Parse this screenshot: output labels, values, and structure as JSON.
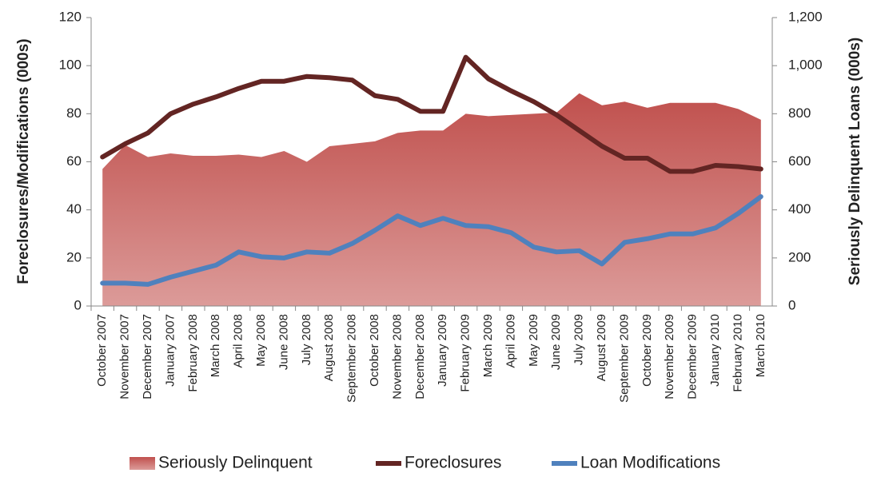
{
  "chart_data": {
    "type": "line",
    "ylabel": "Foreclosures/Modifications (000s)",
    "y2label": "Seriously Delinquent Loans (000s)",
    "categories": [
      "October 2007",
      "November 2007",
      "December 2007",
      "January 2007",
      "February 2008",
      "March 2008",
      "April 2008",
      "May 2008",
      "June 2008",
      "July 2008",
      "August 2008",
      "September 2008",
      "October 2008",
      "November 2008",
      "December 2008",
      "January 2009",
      "February 2009",
      "March 2009",
      "April 2009",
      "May 2009",
      "June 2009",
      "July 2009",
      "August 2009",
      "September 2009",
      "October 2009",
      "November 2009",
      "December 2009",
      "January 2010",
      "February 2010",
      "March 2010"
    ],
    "series": [
      {
        "name": "Seriously Delinquent",
        "type": "area",
        "axis": "y2",
        "color": "#c0504d",
        "values": [
          570,
          670,
          620,
          635,
          625,
          625,
          630,
          620,
          645,
          600,
          665,
          675,
          685,
          720,
          730,
          730,
          800,
          790,
          795,
          800,
          805,
          885,
          835,
          850,
          825,
          845,
          845,
          845,
          820,
          775
        ]
      },
      {
        "name": "Foreclosures",
        "type": "line",
        "color": "#632523",
        "values": [
          62,
          67.5,
          72,
          80,
          84,
          87,
          90.5,
          93.5,
          93.5,
          95.5,
          95,
          94,
          87.5,
          86,
          81,
          81,
          103.5,
          94.5,
          89.5,
          85,
          79.5,
          73,
          66.5,
          61.5,
          61.5,
          56,
          56,
          58.5,
          58,
          57
        ]
      },
      {
        "name": "Loan Modifications",
        "type": "line",
        "color": "#4f81bd",
        "values": [
          9.5,
          9.5,
          9,
          12,
          14.5,
          17,
          22.5,
          20.5,
          20,
          22.5,
          22,
          26,
          31.5,
          37.5,
          33.5,
          36.5,
          33.5,
          33,
          30.5,
          24.5,
          22.5,
          23,
          17.5,
          26.5,
          28,
          30,
          30,
          32.5,
          38.5,
          45.5
        ]
      }
    ],
    "ylim": [
      0,
      120
    ],
    "yticks": [
      0,
      20,
      40,
      60,
      80,
      100,
      120
    ],
    "y2lim": [
      0,
      1200
    ],
    "y2ticks": [
      0,
      200,
      400,
      600,
      800,
      {
        "value": 1000,
        "label": "1,000"
      },
      {
        "value": 1200,
        "label": "1,200"
      }
    ],
    "grid": false,
    "legend": "bottom"
  }
}
